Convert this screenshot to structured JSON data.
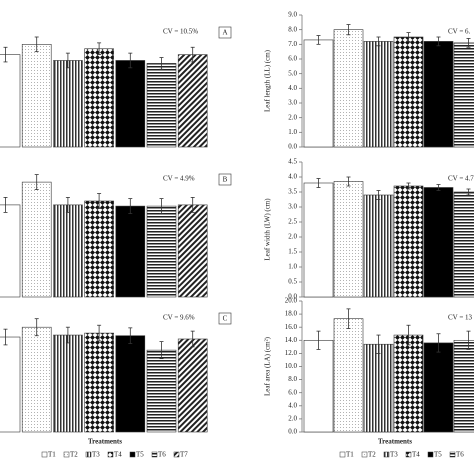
{
  "chart_data": [
    {
      "type": "bar",
      "annotation": "CV = 10.5%",
      "panel_label": "A",
      "categories": [
        "T1",
        "T2",
        "T3",
        "T4",
        "T5",
        "T6",
        "T7"
      ],
      "values": [
        6.3,
        7.0,
        5.9,
        6.7,
        5.9,
        5.7,
        6.3
      ],
      "errors": [
        0.5,
        0.5,
        0.5,
        0.4,
        0.5,
        0.4,
        0.5
      ],
      "ylim": [
        0,
        9
      ]
    },
    {
      "type": "bar",
      "annotation": "CV = 4.9%",
      "panel_label": "B",
      "categories": [
        "T1",
        "T2",
        "T3",
        "T4",
        "T5",
        "T6",
        "T7"
      ],
      "values": [
        3.07,
        3.83,
        3.07,
        3.2,
        3.03,
        3.03,
        3.07
      ],
      "errors": [
        0.25,
        0.25,
        0.25,
        0.25,
        0.25,
        0.25,
        0.25
      ],
      "ylim": [
        0,
        4.5
      ]
    },
    {
      "type": "bar",
      "annotation": "CV = 9.6%",
      "panel_label": "C",
      "xlabel": "Treatments",
      "categories": [
        "T1",
        "T2",
        "T3",
        "T4",
        "T5",
        "T6",
        "T7"
      ],
      "values": [
        14.5,
        16.0,
        14.8,
        15.1,
        14.7,
        12.5,
        14.2
      ],
      "errors": [
        1.2,
        1.3,
        1.2,
        1.2,
        1.2,
        1.3,
        1.2
      ],
      "ylim": [
        0,
        20
      ]
    },
    {
      "type": "bar",
      "annotation": "CV = 6.",
      "ylabel": "Leaf length (LL) (cm)",
      "categories": [
        "T1",
        "T2",
        "T3",
        "T4",
        "T5",
        "T6"
      ],
      "values": [
        7.3,
        8.0,
        7.2,
        7.5,
        7.2,
        7.1
      ],
      "errors": [
        0.3,
        0.35,
        0.3,
        0.3,
        0.3,
        0.3
      ],
      "ylim": [
        0,
        9
      ],
      "yticks": [
        {
          "value": 0,
          "label": "0.0"
        },
        {
          "value": 1,
          "label": "1.0"
        },
        {
          "value": 2,
          "label": "2.0"
        },
        {
          "value": 3,
          "label": "3.0"
        },
        {
          "value": 4,
          "label": "4.0"
        },
        {
          "value": 5,
          "label": "5.0"
        },
        {
          "value": 6,
          "label": "6.0"
        },
        {
          "value": 7,
          "label": "7.0"
        },
        {
          "value": 8,
          "label": "8.0"
        },
        {
          "value": 9,
          "label": "9.0"
        }
      ]
    },
    {
      "type": "bar",
      "annotation": "CV = 4.7",
      "ylabel": "Leaf width (LW) (cm)",
      "categories": [
        "T1",
        "T2",
        "T3",
        "T4",
        "T5",
        "T6"
      ],
      "values": [
        3.8,
        3.85,
        3.4,
        3.7,
        3.65,
        3.5
      ],
      "errors": [
        0.15,
        0.15,
        0.15,
        0.1,
        0.1,
        0.1
      ],
      "ylim": [
        0,
        4.5
      ],
      "yticks": [
        {
          "value": 0,
          "label": "0.0"
        },
        {
          "value": 0.5,
          "label": "0.5"
        },
        {
          "value": 1,
          "label": "1.0"
        },
        {
          "value": 1.5,
          "label": "1.5"
        },
        {
          "value": 2,
          "label": "2.0"
        },
        {
          "value": 2.5,
          "label": "2.5"
        },
        {
          "value": 3,
          "label": "3.0"
        },
        {
          "value": 3.5,
          "label": "3.5"
        },
        {
          "value": 4,
          "label": "4.0"
        },
        {
          "value": 4.5,
          "label": "4.5"
        }
      ]
    },
    {
      "type": "bar",
      "annotation": "CV = 13",
      "ylabel": "Leaf area (LA) (cm²)",
      "xlabel": "Treatments",
      "categories": [
        "T1",
        "T2",
        "T3",
        "T4",
        "T5",
        "T6"
      ],
      "values": [
        14.0,
        17.3,
        13.4,
        14.8,
        13.6,
        14.0
      ],
      "errors": [
        1.4,
        1.5,
        1.4,
        1.5,
        1.4,
        1.4
      ],
      "ylim": [
        0,
        20
      ],
      "yticks": [
        {
          "value": 0,
          "label": "0.0"
        },
        {
          "value": 2,
          "label": "2.0"
        },
        {
          "value": 4,
          "label": "4.0"
        },
        {
          "value": 6,
          "label": "6.0"
        },
        {
          "value": 8,
          "label": "8.0"
        },
        {
          "value": 10,
          "label": "10.0"
        },
        {
          "value": 12,
          "label": "12.0"
        },
        {
          "value": 14,
          "label": "14.0"
        },
        {
          "value": 16,
          "label": "16.0"
        },
        {
          "value": 18,
          "label": "18.0"
        },
        {
          "value": 20,
          "label": "20.0"
        }
      ]
    }
  ]
}
